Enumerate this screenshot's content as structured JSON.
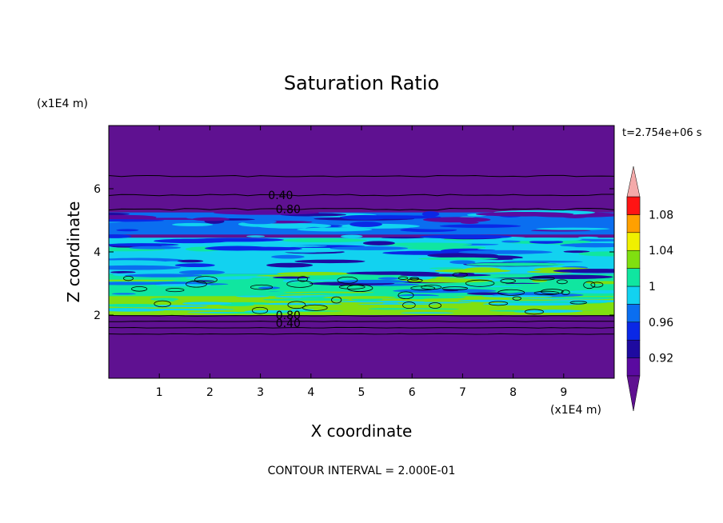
{
  "chart_data": {
    "type": "heatmap",
    "title": "Saturation Ratio",
    "xlabel": "X coordinate",
    "ylabel": "Z coordinate",
    "x_unit": "(x1E4 m)",
    "y_unit": "(x1E4 m)",
    "time_label": "t=2.754e+06 s",
    "footer": "CONTOUR INTERVAL = 2.000E-01",
    "xlim": [
      0,
      10
    ],
    "ylim": [
      0,
      8
    ],
    "x_ticks": [
      1,
      2,
      3,
      4,
      5,
      6,
      7,
      8,
      9
    ],
    "y_ticks": [
      2,
      4,
      6
    ],
    "contour_labels": [
      {
        "text": "0.40",
        "x": 3.4,
        "z": 5.8
      },
      {
        "text": "0.80",
        "x": 3.55,
        "z": 5.35
      },
      {
        "text": "0.80",
        "x": 3.55,
        "z": 2.0
      },
      {
        "text": "0.40",
        "x": 3.55,
        "z": 1.75
      }
    ],
    "colorbar": {
      "labels": [
        "1.08",
        "1.04",
        "1",
        "0.96",
        "0.92"
      ],
      "levels": [
        0.9,
        0.92,
        0.94,
        0.96,
        0.98,
        1.0,
        1.02,
        1.04,
        1.06,
        1.08,
        1.1
      ],
      "colors": [
        "#5a0aa0",
        "#1e0aa0",
        "#0a28e6",
        "#0a6ef0",
        "#12d2f0",
        "#10e6a0",
        "#80e010",
        "#f0f000",
        "#ffa000",
        "#ff5000",
        "#ff1414"
      ],
      "under_color": "#5f1191",
      "over_color": "#f4aaaa"
    },
    "background_color": "#5f1191",
    "bands": [
      {
        "z0": 4.55,
        "z1": 5.25,
        "level": "0.92-0.96",
        "color": "#0a6ef0"
      },
      {
        "z0": 3.3,
        "z1": 4.45,
        "level": "0.96-0.98",
        "color": "#12d2f0"
      },
      {
        "z0": 2.05,
        "z1": 3.3,
        "level": "0.98-1.02",
        "color": "#10e6a0"
      },
      {
        "z0": 2.0,
        "z1": 2.6,
        "level": "1.00-1.02",
        "color": "#80e010"
      }
    ]
  }
}
